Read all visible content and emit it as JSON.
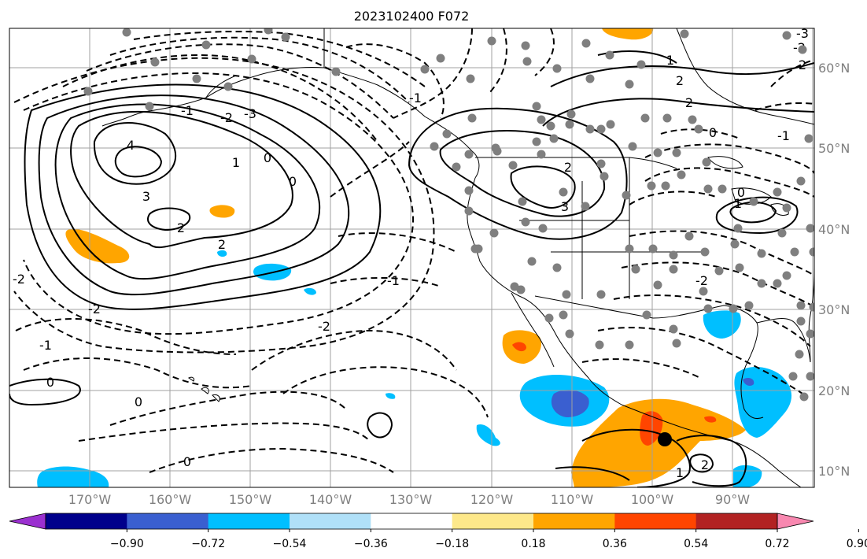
{
  "title": "2023102400 F072",
  "map": {
    "lat_labels": [
      "60°N",
      "50°N",
      "40°N",
      "30°N",
      "20°N",
      "10°N"
    ],
    "lon_labels": [
      "170°W",
      "160°W",
      "150°W",
      "140°W",
      "130°W",
      "120°W",
      "110°W",
      "100°W",
      "90°W"
    ],
    "contour_labels": [
      "4",
      "3",
      "2",
      "1",
      "0",
      "-1",
      "-2",
      "-3",
      "0",
      "2",
      "2",
      "3",
      "1",
      "2",
      "0",
      "-1",
      "0",
      "1",
      "-2",
      "-1",
      "2",
      "-2",
      "-1",
      "0",
      "0",
      "0",
      "-2",
      "-1",
      "2",
      "-2",
      "-3",
      "1",
      "2",
      "-2"
    ],
    "colors": {
      "line": "#000000",
      "grid": "#a0a0a0",
      "stations": "#7f7f7f",
      "storm_marker": "#000000"
    }
  },
  "colorbar": {
    "labels": [
      "−0.90",
      "−0.72",
      "−0.54",
      "−0.36",
      "−0.18",
      "0.18",
      "0.36",
      "0.54",
      "0.72",
      "0.90"
    ],
    "colors": [
      "#9b30d0",
      "#00008b",
      "#3a5fd0",
      "#00bfff",
      "#b0e0f8",
      "#ffffff",
      "#fde88a",
      "#ffa500",
      "#ff4500",
      "#b22222",
      "#f888b0"
    ]
  }
}
